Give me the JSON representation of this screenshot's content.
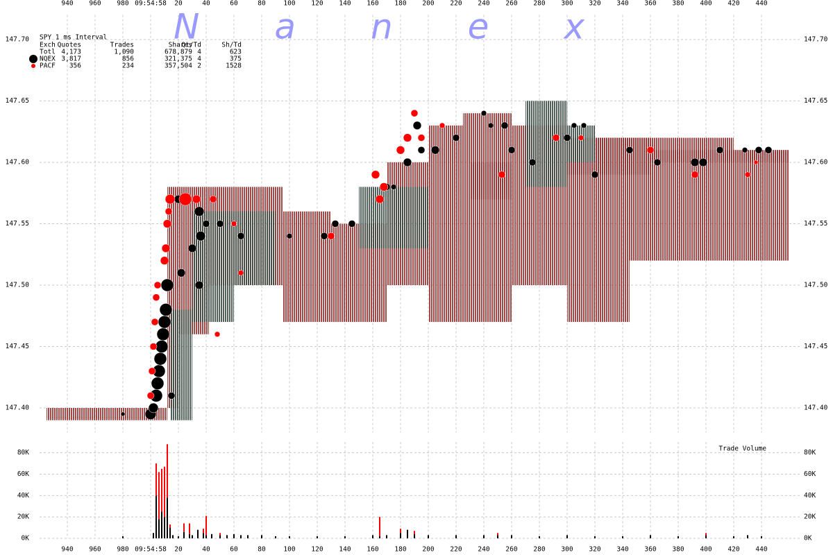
{
  "chart_data": [
    {
      "type": "quote-trade",
      "title": "SPY 1 ms Interval",
      "watermark": "Nanex",
      "stats": {
        "columns": [
          "Exch",
          "Quotes",
          "Trades",
          "Shares",
          "Qt/Td",
          "Sh/Td"
        ],
        "rows": [
          [
            "Totl",
            "4,173",
            "1,090",
            "678,879",
            "4",
            "623"
          ],
          [
            "NQEX",
            "3,817",
            "856",
            "321,375",
            "4",
            "375"
          ],
          [
            "PACF",
            "356",
            "234",
            "357,504",
            "2",
            "1528"
          ]
        ]
      },
      "xlim": [
        -80,
        467.5
      ],
      "xticks": [
        {
          "value": -60,
          "label": "940"
        },
        {
          "value": -40,
          "label": "960"
        },
        {
          "value": -20,
          "label": "980"
        },
        {
          "value": 0,
          "label": "09:54:58"
        },
        20,
        40,
        60,
        80,
        100,
        120,
        140,
        160,
        180,
        200,
        220,
        240,
        260,
        280,
        300,
        320,
        340,
        360,
        380,
        400,
        420,
        440
      ],
      "ylim": [
        147.38,
        147.72
      ],
      "yticks": [
        {
          "value": 147.4,
          "label": "147.40"
        },
        {
          "value": 147.45,
          "label": "147.45"
        },
        {
          "value": 147.5,
          "label": "147.50"
        },
        {
          "value": 147.55,
          "label": "147.55"
        },
        {
          "value": 147.6,
          "label": "147.60"
        },
        {
          "value": 147.65,
          "label": "147.65"
        },
        {
          "value": 147.7,
          "label": "147.70"
        }
      ],
      "grid": true,
      "bands": [
        {
          "color": "#993333",
          "x_start": [
            -75,
            12,
            20,
            42,
            95,
            130,
            170,
            200,
            225,
            260,
            300,
            345,
            370,
            420,
            230,
            300,
            360
          ],
          "x_end": [
            12,
            20,
            42,
            95,
            130,
            170,
            200,
            225,
            260,
            300,
            345,
            370,
            420,
            460,
            260,
            360,
            460
          ],
          "low": [
            147.39,
            147.4,
            147.46,
            147.5,
            147.47,
            147.47,
            147.5,
            147.47,
            147.47,
            147.5,
            147.47,
            147.52,
            147.52,
            147.52,
            147.57,
            147.59,
            147.6
          ],
          "high": [
            147.4,
            147.58,
            147.58,
            147.58,
            147.56,
            147.55,
            147.6,
            147.63,
            147.64,
            147.63,
            147.62,
            147.62,
            147.62,
            147.61,
            147.6,
            147.62,
            147.61
          ]
        },
        {
          "color": "#3d4d45",
          "x_start": [
            14,
            30,
            60,
            150,
            270,
            300
          ],
          "x_end": [
            30,
            60,
            90,
            200,
            300,
            320
          ],
          "low": [
            147.39,
            147.47,
            147.5,
            147.53,
            147.58,
            147.6
          ],
          "high": [
            147.48,
            147.56,
            147.56,
            147.58,
            147.65,
            147.63
          ]
        }
      ],
      "series": [
        {
          "color": "#000000",
          "x": [
            -20,
            0,
            2,
            4,
            5,
            6,
            7,
            8,
            9,
            10,
            11,
            12,
            15,
            20,
            22,
            30,
            35,
            35,
            36,
            40,
            50,
            65,
            100,
            125,
            133,
            145,
            170,
            175,
            185,
            192,
            195,
            205,
            220,
            240,
            245,
            255,
            260,
            275,
            300,
            305,
            312,
            320,
            345,
            365,
            392,
            398,
            410,
            428,
            438,
            445
          ],
          "values": [
            147.395,
            147.395,
            147.4,
            147.41,
            147.42,
            147.43,
            147.44,
            147.45,
            147.46,
            147.47,
            147.48,
            147.5,
            147.41,
            147.57,
            147.51,
            147.53,
            147.56,
            147.5,
            147.54,
            147.55,
            147.55,
            147.54,
            147.54,
            147.54,
            147.55,
            147.55,
            147.58,
            147.58,
            147.6,
            147.63,
            147.61,
            147.61,
            147.62,
            147.64,
            147.63,
            147.63,
            147.61,
            147.6,
            147.62,
            147.63,
            147.63,
            147.59,
            147.61,
            147.6,
            147.6,
            147.6,
            147.61,
            147.61,
            147.61,
            147.61
          ],
          "sizes": [
            1800,
            12500,
            9600,
            16000,
            16000,
            16000,
            16000,
            16000,
            16000,
            16000,
            16000,
            16000,
            5000,
            7000,
            7000,
            7000,
            9600,
            7000,
            9600,
            5000,
            5000,
            5000,
            3000,
            5000,
            5000,
            5000,
            5000,
            3000,
            7000,
            7000,
            5000,
            7000,
            5000,
            3000,
            3000,
            5000,
            5000,
            5000,
            5000,
            3000,
            3000,
            5000,
            5000,
            5000,
            7000,
            7000,
            5000,
            3000,
            5000,
            5000
          ]
        },
        {
          "color": "#ff0000",
          "x": [
            0,
            1,
            2,
            3,
            4,
            5,
            10,
            11,
            12,
            13,
            14,
            25,
            33,
            45,
            60,
            48,
            65,
            130,
            162,
            165,
            168,
            180,
            185,
            190,
            195,
            210,
            253,
            292,
            310,
            360,
            392,
            430,
            436
          ],
          "values": [
            147.41,
            147.43,
            147.45,
            147.47,
            147.49,
            147.5,
            147.52,
            147.53,
            147.55,
            147.56,
            147.57,
            147.57,
            147.57,
            147.57,
            147.55,
            147.46,
            147.51,
            147.54,
            147.59,
            147.57,
            147.58,
            147.61,
            147.62,
            147.64,
            147.62,
            147.63,
            147.59,
            147.62,
            147.62,
            147.61,
            147.59,
            147.59,
            147.6
          ],
          "sizes": [
            5000,
            5000,
            5000,
            5000,
            5000,
            5000,
            7000,
            7000,
            7000,
            5000,
            9600,
            16000,
            7000,
            5000,
            3000,
            3000,
            3000,
            5000,
            7000,
            7000,
            7000,
            7000,
            7000,
            5000,
            5000,
            3000,
            5000,
            5000,
            3000,
            5000,
            5000,
            3000,
            1800
          ]
        }
      ]
    },
    {
      "type": "stacked-bar",
      "title": "Trade Volume",
      "xlim": [
        -80,
        467.5
      ],
      "xticks": [
        {
          "value": -60,
          "label": "940"
        },
        {
          "value": -40,
          "label": "960"
        },
        {
          "value": -20,
          "label": "980"
        },
        {
          "value": 0,
          "label": "09:54:58"
        },
        20,
        40,
        60,
        80,
        100,
        120,
        140,
        160,
        180,
        200,
        220,
        240,
        260,
        280,
        300,
        320,
        340,
        360,
        380,
        400,
        420,
        440
      ],
      "ylim": [
        0,
        90000
      ],
      "yticks": [
        {
          "value": 0,
          "label": "0K"
        },
        {
          "value": 20000,
          "label": "20K"
        },
        {
          "value": 40000,
          "label": "40K"
        },
        {
          "value": 60000,
          "label": "60K"
        },
        {
          "value": 80000,
          "label": "80K"
        }
      ],
      "grid": true,
      "x": [
        -20,
        2,
        4,
        6,
        8,
        10,
        12,
        14,
        16,
        20,
        24,
        28,
        30,
        34,
        38,
        40,
        44,
        50,
        55,
        60,
        65,
        70,
        80,
        90,
        100,
        120,
        140,
        160,
        165,
        170,
        180,
        185,
        190,
        200,
        220,
        240,
        250,
        260,
        280,
        300,
        320,
        340,
        360,
        380,
        400,
        420,
        430,
        440
      ],
      "series": [
        {
          "color": "#000000",
          "values": [
            2000,
            5000,
            40000,
            18000,
            25000,
            20000,
            38000,
            10000,
            3000,
            2000,
            6000,
            4000,
            3000,
            8000,
            5000,
            3000,
            4000,
            3000,
            3000,
            4000,
            3000,
            3000,
            3000,
            2000,
            2000,
            2000,
            2000,
            3000,
            2000,
            3000,
            5000,
            8000,
            4000,
            3000,
            3000,
            3000,
            3000,
            3000,
            2000,
            3000,
            2000,
            2000,
            3000,
            2000,
            3000,
            2000,
            3000,
            2000
          ]
        },
        {
          "color": "#ff0000",
          "values": [
            0,
            0,
            30000,
            44000,
            40000,
            47000,
            50000,
            3000,
            0,
            0,
            8000,
            10000,
            0,
            0,
            4000,
            18000,
            0,
            2000,
            0,
            0,
            0,
            0,
            0,
            0,
            0,
            0,
            0,
            0,
            18000,
            0,
            4000,
            0,
            3000,
            0,
            0,
            0,
            2000,
            0,
            0,
            0,
            0,
            0,
            0,
            0,
            2000,
            0,
            0,
            0
          ]
        }
      ]
    }
  ]
}
